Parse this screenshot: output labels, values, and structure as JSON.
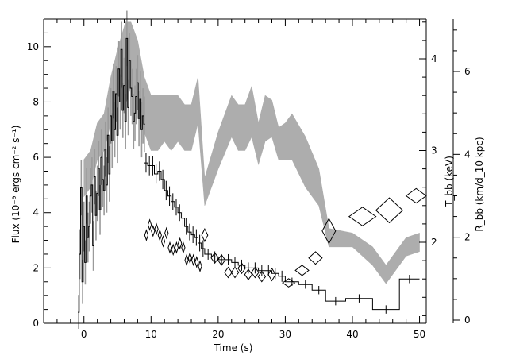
{
  "chart_data": {
    "type": "line",
    "xlabel": "Time (s)",
    "xlim": [
      -6,
      51
    ],
    "x_ticks": [
      0,
      10,
      20,
      30,
      40,
      50
    ],
    "ylabel_left": "Flux (10⁻⁹ ergs cm⁻² s⁻¹)",
    "ylim_left": [
      0,
      11
    ],
    "y_ticks_left": [
      0,
      2,
      4,
      6,
      8,
      10
    ],
    "ylabel_right_T": "T_bb (keV)",
    "T_ticks": [
      2,
      3,
      4
    ],
    "T_axis_ref": [
      [
        2,
        305
      ],
      [
        3,
        188
      ],
      [
        4,
        74
      ]
    ],
    "ylabel_right_R": "R_bb (km/d_10 kpc)",
    "R_ticks": [
      0,
      2,
      4,
      6
    ],
    "R_axis_ref": [
      [
        0,
        403
      ],
      [
        6,
        90
      ]
    ],
    "grid": false,
    "legend": "none",
    "series": [
      {
        "kind": "flux_lightcurve",
        "x": [
          -0.8,
          -0.6,
          -0.4,
          -0.2,
          0,
          0.2,
          0.4,
          0.6,
          0.8,
          1,
          1.2,
          1.4,
          1.6,
          1.8,
          2,
          2.2,
          2.4,
          2.6,
          2.8,
          3,
          3.2,
          3.4,
          3.6,
          3.8,
          4,
          4.2,
          4.4,
          4.6,
          4.8,
          5,
          5.2,
          5.4,
          5.6,
          5.8,
          6,
          6.2,
          6.4,
          6.6,
          6.8,
          7,
          7.2,
          7.4,
          7.6,
          7.8,
          8,
          8.2,
          8.4,
          8.6,
          8.8,
          9
        ],
        "y": [
          0.4,
          2.5,
          4.9,
          1.5,
          3.5,
          2.2,
          4.6,
          3.1,
          3.5,
          4.6,
          5.0,
          2.8,
          5.3,
          3.9,
          4.7,
          5.6,
          4.1,
          6.0,
          5.2,
          4.8,
          6.3,
          5.0,
          6.8,
          5.4,
          7.5,
          6.6,
          8.4,
          7.0,
          8.3,
          6.8,
          9.2,
          8.0,
          9.9,
          7.7,
          8.6,
          7.3,
          10.3,
          7.8,
          9.5,
          8.5,
          8.2,
          7.3,
          7.6,
          8.2,
          8.7,
          7.4,
          8.1,
          7.0,
          7.5,
          7.2
        ],
        "yerr": [
          0.6,
          0.9,
          1.0,
          0.8,
          0.9,
          0.8,
          1.0,
          0.9,
          0.9,
          1.0,
          1.0,
          0.9,
          1.0,
          0.9,
          1.0,
          1.0,
          0.9,
          1.0,
          1.0,
          0.9,
          1.0,
          1.0,
          1.0,
          1.0,
          1.0,
          1.0,
          1.0,
          1.0,
          1.0,
          1.0,
          1.0,
          1.0,
          1.0,
          1.0,
          1.0,
          1.0,
          1.0,
          1.0,
          1.0,
          1.0,
          1.0,
          1.0,
          1.0,
          1.0,
          1.0,
          1.0,
          1.0,
          1.0,
          1.0,
          1.0
        ]
      },
      {
        "kind": "flux_binned",
        "x": [
          9.25,
          9.75,
          10.25,
          10.75,
          11.25,
          11.75,
          12.25,
          12.75,
          13.25,
          13.75,
          14.25,
          14.75,
          15.25,
          15.75,
          16.25,
          16.75,
          17.25,
          17.75,
          18.5,
          19.5,
          20.5,
          21.5,
          22.5,
          23.5,
          24.5,
          25.5,
          26.5,
          27.5,
          28.5,
          29.5,
          31,
          33,
          35,
          37.5,
          41,
          45,
          48.5
        ],
        "xerr": [
          0.25,
          0.25,
          0.25,
          0.25,
          0.25,
          0.25,
          0.25,
          0.25,
          0.25,
          0.25,
          0.25,
          0.25,
          0.25,
          0.25,
          0.25,
          0.25,
          0.25,
          0.25,
          0.5,
          0.5,
          0.5,
          0.5,
          0.5,
          0.5,
          0.5,
          0.5,
          0.5,
          0.5,
          0.5,
          0.5,
          1,
          1,
          1,
          1.5,
          2,
          2,
          1.5
        ],
        "y": [
          5.8,
          5.7,
          5.7,
          5.4,
          5.5,
          5.2,
          4.8,
          4.6,
          4.4,
          4.2,
          4.0,
          3.8,
          3.5,
          3.3,
          3.2,
          3.1,
          2.9,
          2.7,
          2.5,
          2.4,
          2.3,
          2.3,
          2.2,
          2.1,
          2.0,
          2.0,
          1.9,
          1.9,
          1.8,
          1.7,
          1.5,
          1.4,
          1.2,
          0.8,
          0.9,
          0.5,
          1.6
        ],
        "yerr": [
          0.35,
          0.35,
          0.35,
          0.35,
          0.35,
          0.35,
          0.35,
          0.35,
          0.3,
          0.3,
          0.3,
          0.3,
          0.3,
          0.3,
          0.3,
          0.3,
          0.3,
          0.3,
          0.2,
          0.2,
          0.2,
          0.2,
          0.2,
          0.2,
          0.2,
          0.2,
          0.2,
          0.2,
          0.2,
          0.2,
          0.15,
          0.15,
          0.15,
          0.15,
          0.15,
          0.15,
          0.15
        ]
      },
      {
        "kind": "temperature_band",
        "x": [
          0,
          1,
          2,
          3,
          4,
          5,
          5.6,
          6.2,
          7,
          7.5,
          8,
          9,
          10,
          11,
          12,
          13,
          14,
          15,
          16,
          17,
          18,
          20,
          22,
          23,
          24,
          25,
          26,
          27,
          28,
          29,
          30,
          31,
          33,
          35,
          36.5,
          40,
          43,
          45,
          48,
          50
        ],
        "low": [
          2.5,
          2.6,
          2.9,
          3.0,
          3.3,
          3.6,
          3.7,
          3.5,
          3.7,
          3.6,
          3.5,
          3.2,
          3.0,
          3.0,
          3.1,
          3.0,
          3.1,
          3.0,
          3.0,
          3.3,
          2.4,
          2.8,
          3.15,
          3.0,
          3.0,
          3.15,
          2.85,
          3.1,
          3.15,
          2.9,
          2.9,
          2.9,
          2.6,
          2.4,
          1.95,
          1.95,
          1.75,
          1.55,
          1.85,
          1.9
        ],
        "high": [
          2.9,
          3.0,
          3.3,
          3.4,
          3.8,
          4.1,
          4.25,
          4.4,
          4.4,
          4.3,
          4.2,
          3.8,
          3.6,
          3.6,
          3.6,
          3.6,
          3.6,
          3.5,
          3.5,
          3.8,
          2.7,
          3.2,
          3.6,
          3.5,
          3.5,
          3.7,
          3.3,
          3.6,
          3.55,
          3.25,
          3.3,
          3.4,
          3.15,
          2.8,
          2.15,
          2.1,
          1.95,
          1.75,
          2.05,
          2.1
        ]
      },
      {
        "kind": "radius_diamonds",
        "x": [
          9.3,
          9.8,
          10.3,
          10.8,
          11.3,
          11.8,
          12.3,
          12.8,
          13.3,
          13.8,
          14.3,
          14.8,
          15.3,
          15.8,
          16.3,
          16.8,
          17.3,
          18,
          19.5,
          20.5,
          21.5,
          22.5,
          23.5,
          24.5,
          25.5,
          26.5,
          28,
          30.5,
          32.5,
          34.5,
          36.5,
          41.5,
          45.5,
          49.5
        ],
        "y": [
          2.05,
          2.3,
          2.15,
          2.2,
          2.05,
          1.9,
          2.1,
          1.75,
          1.7,
          1.75,
          1.85,
          1.75,
          1.45,
          1.5,
          1.45,
          1.4,
          1.3,
          2.05,
          1.5,
          1.45,
          1.15,
          1.15,
          1.25,
          1.1,
          1.15,
          1.05,
          1.1,
          0.9,
          1.2,
          1.5,
          2.15,
          2.5,
          2.65,
          3.0
        ],
        "w": [
          0.5,
          0.5,
          0.5,
          0.5,
          0.5,
          0.5,
          0.5,
          0.5,
          0.5,
          0.5,
          0.5,
          0.5,
          0.5,
          0.5,
          0.5,
          0.5,
          0.5,
          0.9,
          1.1,
          1.1,
          1.1,
          1.1,
          1.1,
          1.1,
          1.1,
          1.1,
          1.1,
          1.8,
          2.0,
          2.0,
          2.0,
          4.0,
          4.0,
          3.0
        ],
        "h": [
          0.24,
          0.24,
          0.24,
          0.24,
          0.24,
          0.24,
          0.24,
          0.24,
          0.24,
          0.24,
          0.24,
          0.24,
          0.24,
          0.24,
          0.24,
          0.24,
          0.24,
          0.3,
          0.25,
          0.25,
          0.25,
          0.25,
          0.25,
          0.25,
          0.25,
          0.25,
          0.3,
          0.2,
          0.25,
          0.3,
          0.6,
          0.45,
          0.6,
          0.35
        ]
      }
    ]
  }
}
